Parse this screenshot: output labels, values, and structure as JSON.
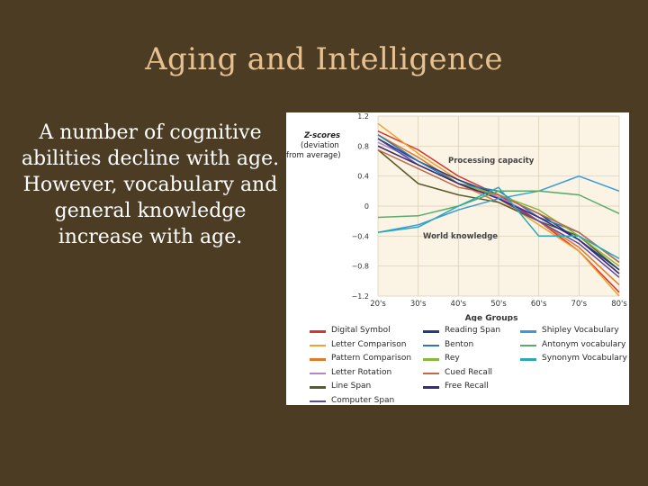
{
  "slide": {
    "title": "Aging and Intelligence",
    "body": "A number of cognitive abilities decline with age. However, vocabulary and general knowledge increase with age."
  },
  "colors": {
    "background": "#4c3c24",
    "title": "#e6c18f",
    "text": "#ffffff",
    "plot_background": "#fbf3e3"
  },
  "chart_data": {
    "type": "line",
    "ylabel": "Z-scores (deviation from average)",
    "xlabel": "Age Groups",
    "categories": [
      "20's",
      "30's",
      "40's",
      "50's",
      "60's",
      "70's",
      "80's"
    ],
    "ylim": [
      -1.2,
      1.2
    ],
    "yticks": [
      1.2,
      0.8,
      0.4,
      0,
      -0.4,
      -0.8,
      -1.2
    ],
    "ytick_labels": [
      "1.2",
      "0.8",
      "0.4",
      "0",
      "−0.4",
      "−0.8",
      "−1.2"
    ],
    "annotations": [
      "Processing capacity",
      "World knowledge"
    ],
    "grid": true,
    "legend_position": "bottom",
    "series": [
      {
        "name": "Digital Symbol",
        "color": "#d8352a",
        "values": [
          1.0,
          0.75,
          0.4,
          0.15,
          -0.2,
          -0.6,
          -1.15
        ]
      },
      {
        "name": "Letter Comparison",
        "color": "#f0a030",
        "values": [
          1.1,
          0.7,
          0.35,
          0.1,
          -0.25,
          -0.6,
          -1.2
        ]
      },
      {
        "name": "Pattern Comparison",
        "color": "#e07828",
        "values": [
          0.95,
          0.65,
          0.3,
          0.05,
          -0.2,
          -0.55,
          -1.05
        ]
      },
      {
        "name": "Letter Rotation",
        "color": "#b088c8",
        "values": [
          0.85,
          0.6,
          0.35,
          0.12,
          -0.15,
          -0.45,
          -0.9
        ]
      },
      {
        "name": "Line Span",
        "color": "#5a5a2a",
        "values": [
          0.75,
          0.3,
          0.15,
          0.05,
          -0.2,
          -0.4,
          -0.85
        ]
      },
      {
        "name": "Computer Span",
        "color": "#5a4ab0",
        "values": [
          0.9,
          0.55,
          0.3,
          0.1,
          -0.2,
          -0.5,
          -0.95
        ]
      },
      {
        "name": "Reading Span",
        "color": "#1f3f7a",
        "values": [
          0.9,
          0.6,
          0.35,
          0.15,
          -0.1,
          -0.45,
          -0.85
        ]
      },
      {
        "name": "Benton",
        "color": "#2a78b8",
        "values": [
          0.95,
          0.6,
          0.3,
          0.2,
          -0.15,
          -0.35,
          -0.75
        ]
      },
      {
        "name": "Rey",
        "color": "#86b83a",
        "values": [
          0.8,
          0.55,
          0.3,
          0.15,
          -0.05,
          -0.4,
          -0.8
        ]
      },
      {
        "name": "Cued Recall",
        "color": "#c06848",
        "values": [
          0.75,
          0.5,
          0.25,
          0.15,
          -0.1,
          -0.35,
          -0.75
        ]
      },
      {
        "name": "Free Recall",
        "color": "#3a2a7a",
        "values": [
          0.8,
          0.55,
          0.3,
          0.1,
          -0.15,
          -0.45,
          -0.9
        ]
      },
      {
        "name": "Shipley Vocabulary",
        "color": "#3a9ad8",
        "values": [
          -0.35,
          -0.25,
          -0.05,
          0.1,
          0.2,
          0.4,
          0.2
        ]
      },
      {
        "name": "Antonym vocabulary",
        "color": "#5aab6a",
        "values": [
          -0.15,
          -0.13,
          0.0,
          0.2,
          0.2,
          0.15,
          -0.1
        ]
      },
      {
        "name": "Synonym Vocabulary",
        "color": "#2aa8b8",
        "values": [
          -0.35,
          -0.28,
          0.0,
          0.25,
          -0.4,
          -0.4,
          -0.7
        ]
      }
    ]
  }
}
